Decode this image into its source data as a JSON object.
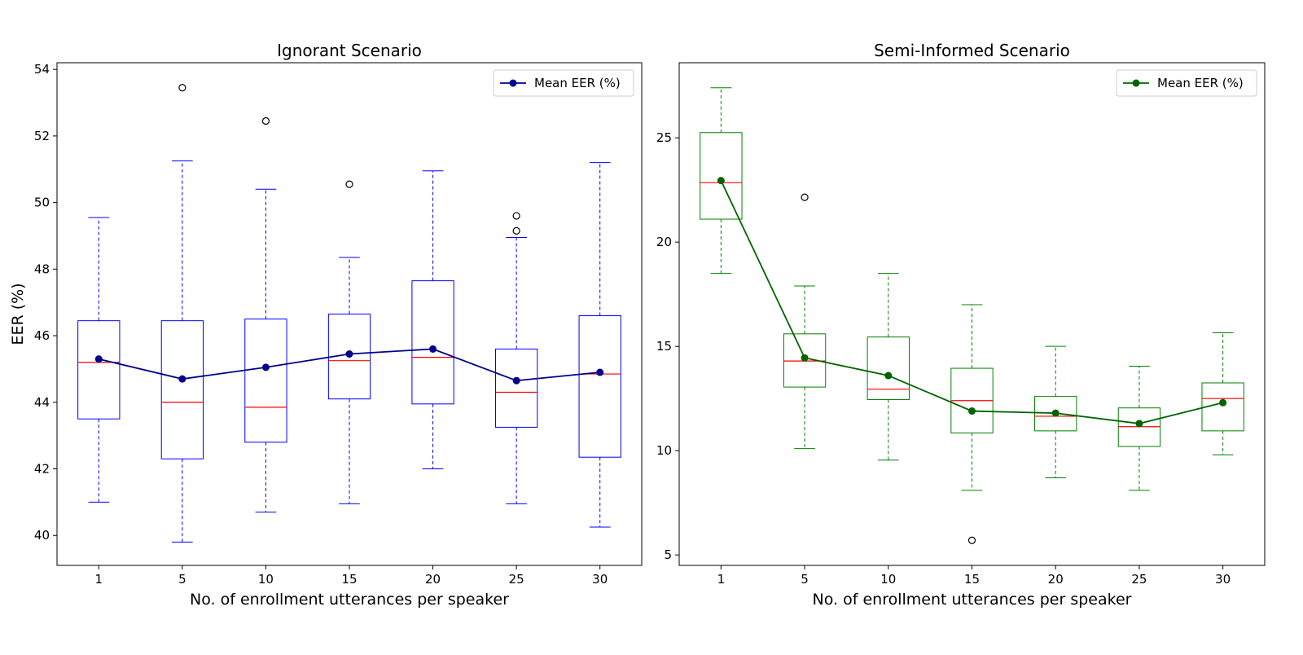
{
  "chart_data": [
    {
      "type": "box",
      "title": "Ignorant Scenario",
      "xlabel": "No. of enrollment utterances per speaker",
      "ylabel": "EER (%)",
      "categories": [
        "1",
        "5",
        "10",
        "15",
        "20",
        "25",
        "30"
      ],
      "ylim": [
        39.1,
        54.2
      ],
      "yticks": [
        40,
        42,
        44,
        46,
        48,
        50,
        52,
        54
      ],
      "box_color": "#0000ff",
      "median_color": "#ff0000",
      "mean_color": "#00008b",
      "legend": {
        "label": "Mean EER (%)",
        "position": "top-right"
      },
      "boxes": [
        {
          "whisker_low": 41.0,
          "q1": 43.5,
          "median": 45.2,
          "q3": 46.45,
          "whisker_high": 49.55,
          "outliers": []
        },
        {
          "whisker_low": 39.8,
          "q1": 42.3,
          "median": 44.0,
          "q3": 46.45,
          "whisker_high": 51.25,
          "outliers": [
            53.45
          ]
        },
        {
          "whisker_low": 40.7,
          "q1": 42.8,
          "median": 43.85,
          "q3": 46.5,
          "whisker_high": 50.4,
          "outliers": [
            52.45
          ]
        },
        {
          "whisker_low": 40.95,
          "q1": 44.1,
          "median": 45.25,
          "q3": 46.65,
          "whisker_high": 48.35,
          "outliers": [
            50.55
          ]
        },
        {
          "whisker_low": 42.0,
          "q1": 43.95,
          "median": 45.35,
          "q3": 47.65,
          "whisker_high": 50.95,
          "outliers": []
        },
        {
          "whisker_low": 40.95,
          "q1": 43.25,
          "median": 44.3,
          "q3": 45.6,
          "whisker_high": 48.95,
          "outliers": [
            49.6,
            49.15
          ]
        },
        {
          "whisker_low": 40.25,
          "q1": 42.35,
          "median": 44.85,
          "q3": 46.6,
          "whisker_high": 51.2,
          "outliers": []
        }
      ],
      "mean_values": [
        45.3,
        44.7,
        45.05,
        45.45,
        45.6,
        44.65,
        44.9
      ]
    },
    {
      "type": "box",
      "title": "Semi-Informed Scenario",
      "xlabel": "No. of enrollment utterances per speaker",
      "ylabel": "",
      "categories": [
        "1",
        "5",
        "10",
        "15",
        "20",
        "25",
        "30"
      ],
      "ylim": [
        4.5,
        28.6
      ],
      "yticks": [
        5,
        10,
        15,
        20,
        25
      ],
      "box_color": "#008000",
      "median_color": "#ff0000",
      "mean_color": "#006400",
      "legend": {
        "label": "Mean EER (%)",
        "position": "top-right"
      },
      "boxes": [
        {
          "whisker_low": 18.5,
          "q1": 21.1,
          "median": 22.85,
          "q3": 25.25,
          "whisker_high": 27.4,
          "outliers": []
        },
        {
          "whisker_low": 10.1,
          "q1": 13.05,
          "median": 14.3,
          "q3": 15.6,
          "whisker_high": 17.9,
          "outliers": [
            22.15
          ]
        },
        {
          "whisker_low": 9.55,
          "q1": 12.45,
          "median": 12.95,
          "q3": 15.45,
          "whisker_high": 18.5,
          "outliers": []
        },
        {
          "whisker_low": 8.1,
          "q1": 10.85,
          "median": 12.4,
          "q3": 13.95,
          "whisker_high": 17.0,
          "outliers": [
            5.7
          ]
        },
        {
          "whisker_low": 8.7,
          "q1": 10.95,
          "median": 11.65,
          "q3": 12.6,
          "whisker_high": 15.0,
          "outliers": []
        },
        {
          "whisker_low": 8.1,
          "q1": 10.2,
          "median": 11.15,
          "q3": 12.05,
          "whisker_high": 14.05,
          "outliers": []
        },
        {
          "whisker_low": 9.8,
          "q1": 10.95,
          "median": 12.5,
          "q3": 13.25,
          "whisker_high": 15.65,
          "outliers": []
        }
      ],
      "mean_values": [
        22.95,
        14.45,
        13.6,
        11.9,
        11.8,
        11.3,
        12.3
      ]
    }
  ]
}
